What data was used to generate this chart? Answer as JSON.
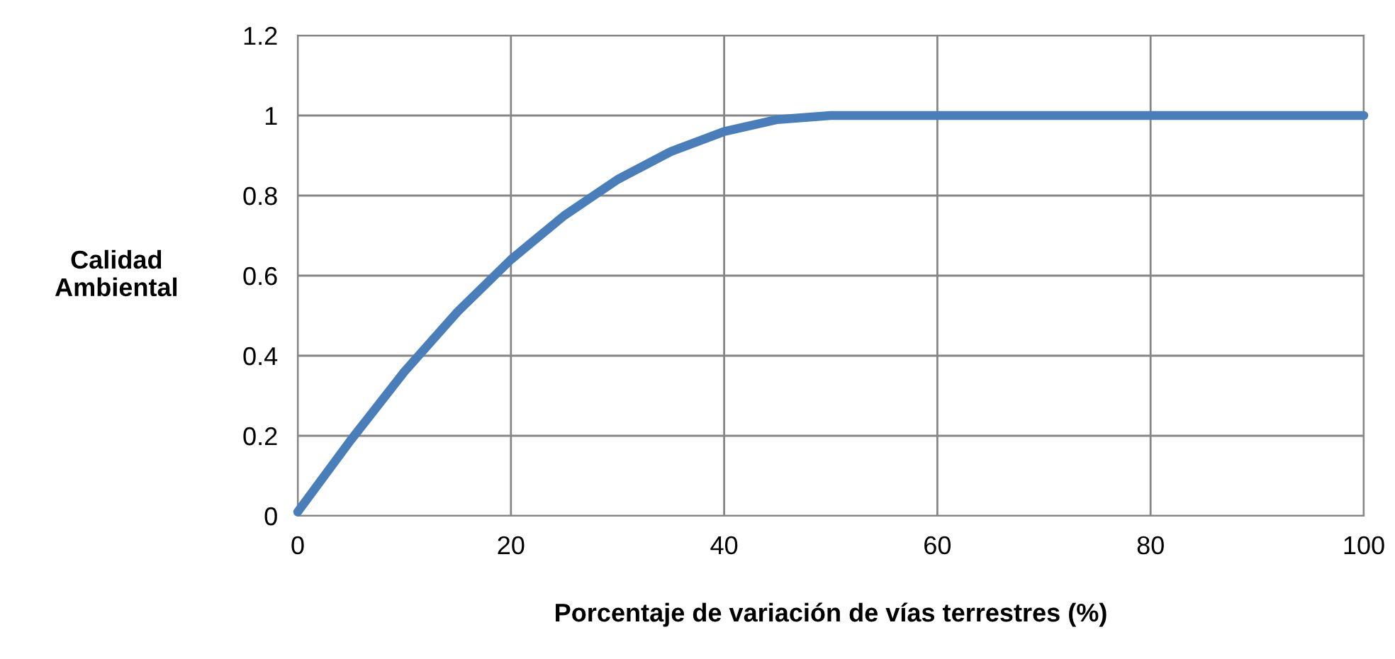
{
  "chart_data": {
    "type": "line",
    "xlabel": "Porcentaje de variación de vías terrestres (%)",
    "ylabel": "Calidad\nAmbiental",
    "x": [
      0,
      5,
      10,
      15,
      20,
      25,
      30,
      35,
      40,
      45,
      50,
      100
    ],
    "series": [
      {
        "color": "#4a7ebb",
        "values": [
          0.01,
          0.19,
          0.36,
          0.51,
          0.64,
          0.75,
          0.84,
          0.91,
          0.96,
          0.99,
          1,
          1
        ]
      }
    ],
    "xlim": [
      0,
      100
    ],
    "xticks": [
      0,
      20,
      40,
      60,
      80,
      100
    ],
    "ylim": [
      0,
      1.2
    ],
    "yticks": [
      0,
      0.2,
      0.4,
      0.6,
      0.8,
      1,
      1.2
    ],
    "grid": true,
    "legend": false,
    "marker": "none",
    "line_style": "solid"
  }
}
